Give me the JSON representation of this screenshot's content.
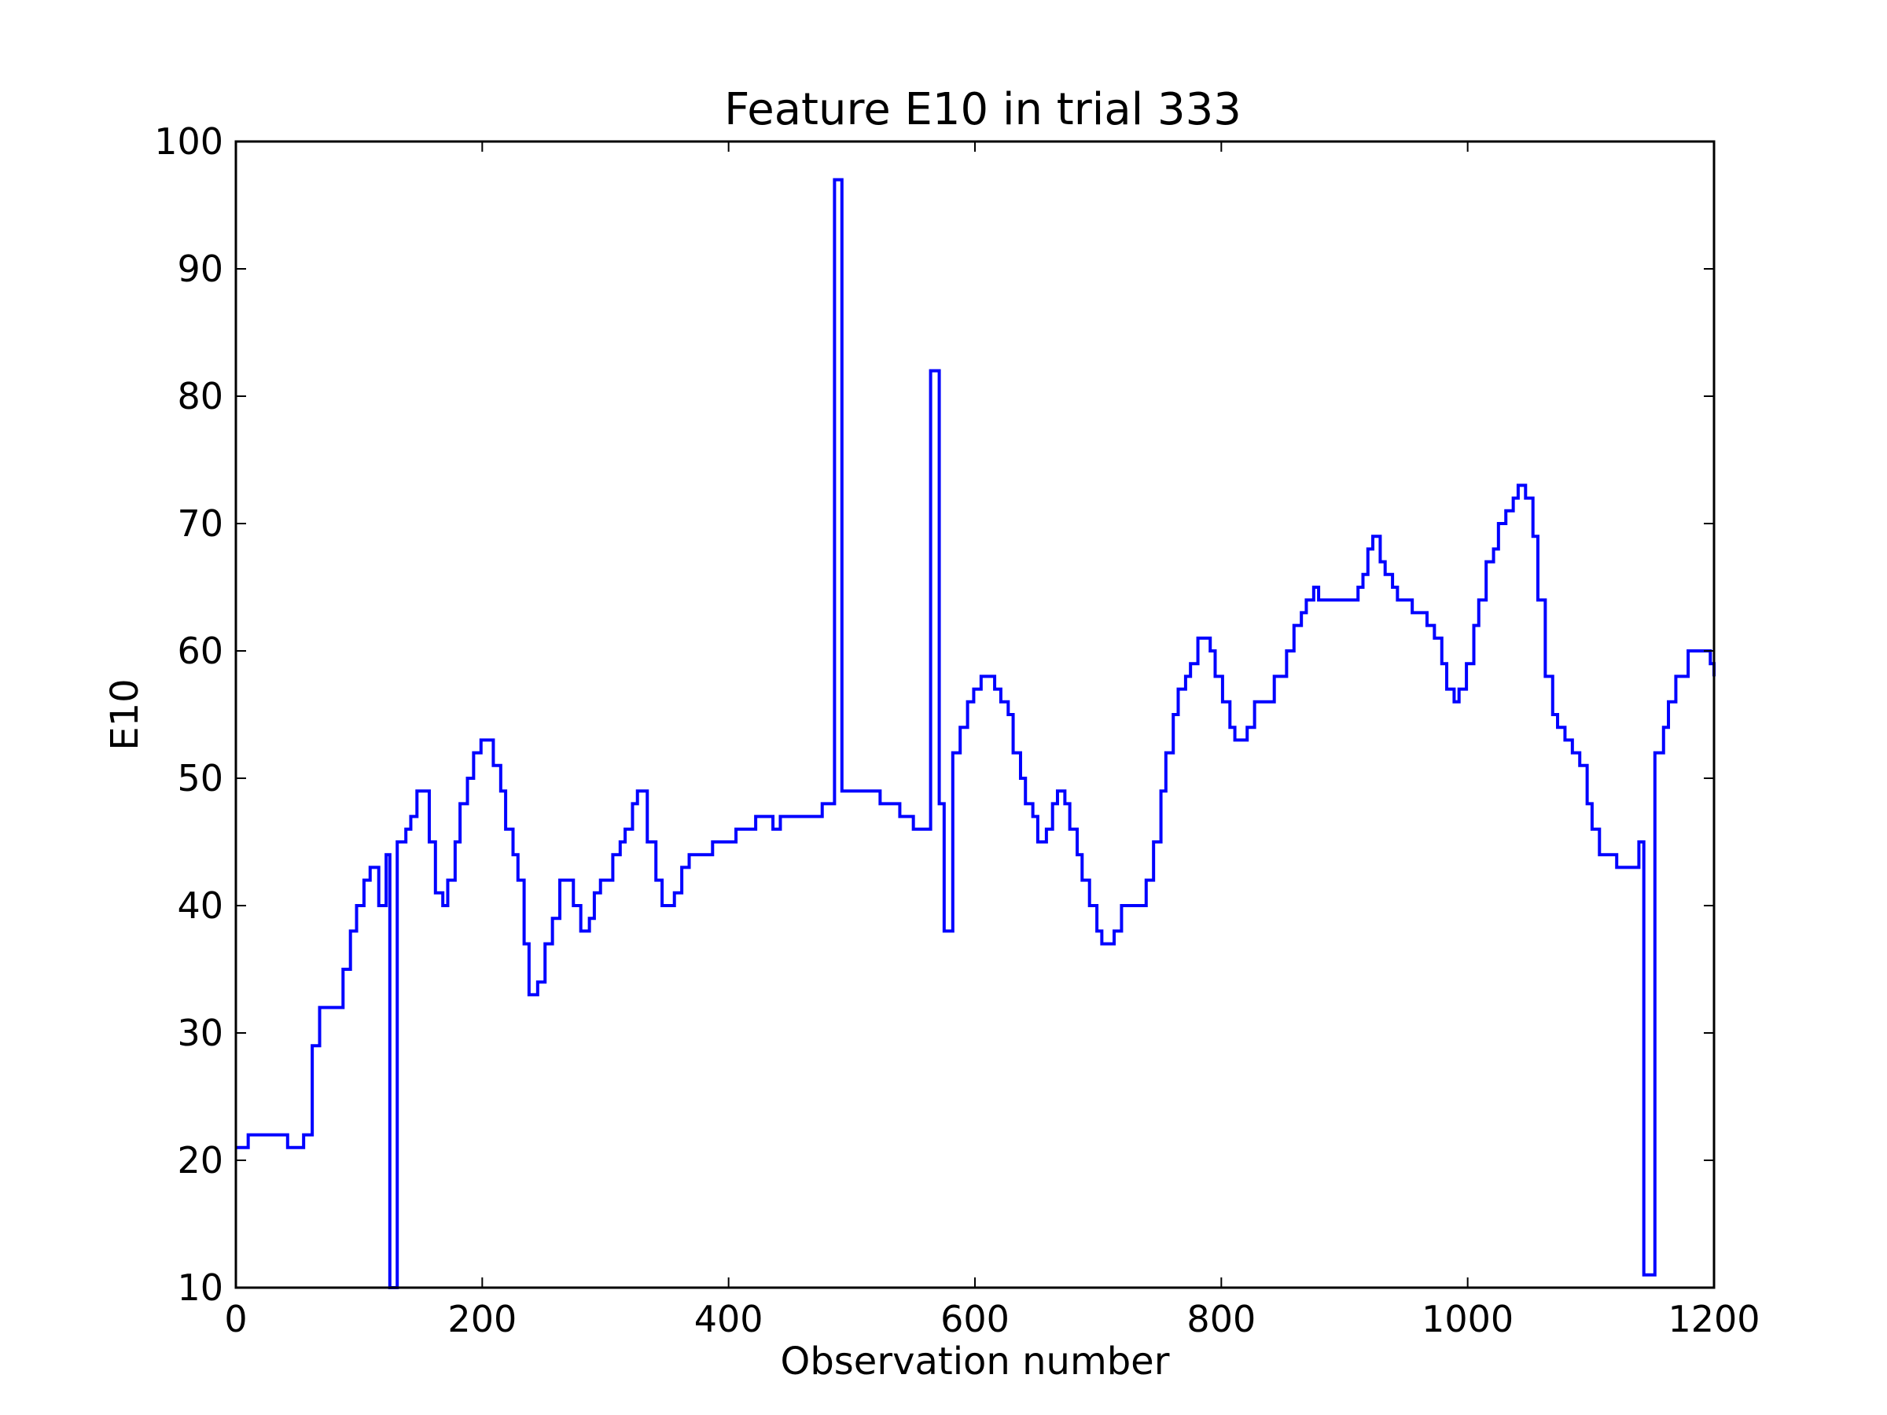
{
  "chart_data": {
    "type": "line",
    "title": "Feature E10 in trial 333",
    "xlabel": "Observation number",
    "ylabel": "E10",
    "xlim": [
      0,
      1200
    ],
    "ylim": [
      10,
      100
    ],
    "grid": false,
    "x_ticks": [
      "0",
      "200",
      "400",
      "600",
      "800",
      "1000",
      "1200"
    ],
    "y_ticks": [
      "10",
      "20",
      "30",
      "40",
      "50",
      "60",
      "70",
      "80",
      "90",
      "100"
    ],
    "series": [
      {
        "color": "#0000ff",
        "step": true,
        "points": [
          [
            0,
            21
          ],
          [
            10,
            22
          ],
          [
            40,
            22
          ],
          [
            42,
            21
          ],
          [
            52,
            21
          ],
          [
            55,
            22
          ],
          [
            60,
            22
          ],
          [
            62,
            29
          ],
          [
            66,
            29
          ],
          [
            68,
            32
          ],
          [
            85,
            32
          ],
          [
            87,
            35
          ],
          [
            91,
            35
          ],
          [
            93,
            38
          ],
          [
            96,
            38
          ],
          [
            98,
            40
          ],
          [
            102,
            40
          ],
          [
            104,
            42
          ],
          [
            107,
            42
          ],
          [
            109,
            43
          ],
          [
            114,
            43
          ],
          [
            116,
            40
          ],
          [
            120,
            40
          ],
          [
            122,
            44
          ],
          [
            124,
            44
          ],
          [
            125,
            10
          ],
          [
            129,
            10
          ],
          [
            131,
            45
          ],
          [
            136,
            45
          ],
          [
            138,
            46
          ],
          [
            140,
            46
          ],
          [
            142,
            47
          ],
          [
            145,
            47
          ],
          [
            147,
            49
          ],
          [
            155,
            49
          ],
          [
            157,
            45
          ],
          [
            160,
            45
          ],
          [
            162,
            41
          ],
          [
            166,
            41
          ],
          [
            168,
            40
          ],
          [
            170,
            40
          ],
          [
            172,
            42
          ],
          [
            176,
            42
          ],
          [
            178,
            45
          ],
          [
            180,
            45
          ],
          [
            182,
            48
          ],
          [
            186,
            48
          ],
          [
            188,
            50
          ],
          [
            191,
            50
          ],
          [
            193,
            52
          ],
          [
            197,
            52
          ],
          [
            199,
            53
          ],
          [
            207,
            53
          ],
          [
            209,
            51
          ],
          [
            213,
            51
          ],
          [
            215,
            49
          ],
          [
            217,
            49
          ],
          [
            219,
            46
          ],
          [
            223,
            46
          ],
          [
            225,
            44
          ],
          [
            227,
            44
          ],
          [
            229,
            42
          ],
          [
            232,
            42
          ],
          [
            234,
            37
          ],
          [
            236,
            37
          ],
          [
            238,
            33
          ],
          [
            243,
            33
          ],
          [
            245,
            34
          ],
          [
            249,
            34
          ],
          [
            251,
            37
          ],
          [
            255,
            37
          ],
          [
            257,
            39
          ],
          [
            261,
            39
          ],
          [
            263,
            42
          ],
          [
            272,
            42
          ],
          [
            274,
            40
          ],
          [
            278,
            40
          ],
          [
            280,
            38
          ],
          [
            285,
            38
          ],
          [
            287,
            39
          ],
          [
            289,
            39
          ],
          [
            291,
            41
          ],
          [
            294,
            41
          ],
          [
            296,
            42
          ],
          [
            304,
            42
          ],
          [
            306,
            44
          ],
          [
            310,
            44
          ],
          [
            312,
            45
          ],
          [
            314,
            45
          ],
          [
            316,
            46
          ],
          [
            320,
            46
          ],
          [
            322,
            48
          ],
          [
            324,
            48
          ],
          [
            326,
            49
          ],
          [
            332,
            49
          ],
          [
            334,
            45
          ],
          [
            339,
            45
          ],
          [
            341,
            42
          ],
          [
            344,
            42
          ],
          [
            346,
            40
          ],
          [
            354,
            40
          ],
          [
            356,
            41
          ],
          [
            360,
            41
          ],
          [
            362,
            43
          ],
          [
            366,
            43
          ],
          [
            368,
            44
          ],
          [
            385,
            44
          ],
          [
            387,
            45
          ],
          [
            404,
            45
          ],
          [
            406,
            46
          ],
          [
            420,
            46
          ],
          [
            422,
            47
          ],
          [
            434,
            47
          ],
          [
            436,
            46
          ],
          [
            440,
            46
          ],
          [
            442,
            47
          ],
          [
            474,
            47
          ],
          [
            476,
            48
          ],
          [
            484,
            48
          ],
          [
            486,
            97
          ],
          [
            490,
            97
          ],
          [
            492,
            49
          ],
          [
            521,
            49
          ],
          [
            523,
            48
          ],
          [
            537,
            48
          ],
          [
            539,
            47
          ],
          [
            548,
            47
          ],
          [
            550,
            46
          ],
          [
            562,
            46
          ],
          [
            564,
            82
          ],
          [
            569,
            82
          ],
          [
            571,
            48
          ],
          [
            573,
            48
          ],
          [
            575,
            38
          ],
          [
            580,
            38
          ],
          [
            582,
            52
          ],
          [
            586,
            52
          ],
          [
            588,
            54
          ],
          [
            592,
            54
          ],
          [
            594,
            56
          ],
          [
            597,
            56
          ],
          [
            599,
            57
          ],
          [
            603,
            57
          ],
          [
            605,
            58
          ],
          [
            614,
            58
          ],
          [
            616,
            57
          ],
          [
            619,
            57
          ],
          [
            621,
            56
          ],
          [
            625,
            56
          ],
          [
            627,
            55
          ],
          [
            629,
            55
          ],
          [
            631,
            52
          ],
          [
            635,
            52
          ],
          [
            637,
            50
          ],
          [
            639,
            50
          ],
          [
            641,
            48
          ],
          [
            645,
            48
          ],
          [
            647,
            47
          ],
          [
            649,
            47
          ],
          [
            651,
            45
          ],
          [
            656,
            45
          ],
          [
            658,
            46
          ],
          [
            661,
            46
          ],
          [
            663,
            48
          ],
          [
            665,
            48
          ],
          [
            667,
            49
          ],
          [
            671,
            49
          ],
          [
            673,
            48
          ],
          [
            675,
            48
          ],
          [
            677,
            46
          ],
          [
            681,
            46
          ],
          [
            683,
            44
          ],
          [
            685,
            44
          ],
          [
            687,
            42
          ],
          [
            691,
            42
          ],
          [
            693,
            40
          ],
          [
            697,
            40
          ],
          [
            699,
            38
          ],
          [
            701,
            38
          ],
          [
            703,
            37
          ],
          [
            711,
            37
          ],
          [
            713,
            38
          ],
          [
            717,
            38
          ],
          [
            719,
            40
          ],
          [
            737,
            40
          ],
          [
            739,
            42
          ],
          [
            743,
            42
          ],
          [
            745,
            45
          ],
          [
            749,
            45
          ],
          [
            751,
            49
          ],
          [
            753,
            49
          ],
          [
            755,
            52
          ],
          [
            759,
            52
          ],
          [
            761,
            55
          ],
          [
            763,
            55
          ],
          [
            765,
            57
          ],
          [
            769,
            57
          ],
          [
            771,
            58
          ],
          [
            773,
            58
          ],
          [
            775,
            59
          ],
          [
            779,
            59
          ],
          [
            781,
            61
          ],
          [
            789,
            61
          ],
          [
            791,
            60
          ],
          [
            793,
            60
          ],
          [
            795,
            58
          ],
          [
            799,
            58
          ],
          [
            801,
            56
          ],
          [
            805,
            56
          ],
          [
            807,
            54
          ],
          [
            809,
            54
          ],
          [
            811,
            53
          ],
          [
            819,
            53
          ],
          [
            821,
            54
          ],
          [
            825,
            54
          ],
          [
            827,
            56
          ],
          [
            841,
            56
          ],
          [
            843,
            58
          ],
          [
            851,
            58
          ],
          [
            853,
            60
          ],
          [
            857,
            60
          ],
          [
            859,
            62
          ],
          [
            863,
            62
          ],
          [
            865,
            63
          ],
          [
            867,
            63
          ],
          [
            869,
            64
          ],
          [
            873,
            64
          ],
          [
            875,
            65
          ],
          [
            877,
            65
          ],
          [
            879,
            64
          ],
          [
            909,
            64
          ],
          [
            911,
            65
          ],
          [
            913,
            65
          ],
          [
            915,
            66
          ],
          [
            917,
            66
          ],
          [
            919,
            68
          ],
          [
            921,
            68
          ],
          [
            923,
            69
          ],
          [
            927,
            69
          ],
          [
            929,
            67
          ],
          [
            931,
            67
          ],
          [
            933,
            66
          ],
          [
            937,
            66
          ],
          [
            939,
            65
          ],
          [
            941,
            65
          ],
          [
            943,
            64
          ],
          [
            953,
            64
          ],
          [
            955,
            63
          ],
          [
            965,
            63
          ],
          [
            967,
            62
          ],
          [
            971,
            62
          ],
          [
            973,
            61
          ],
          [
            977,
            61
          ],
          [
            979,
            59
          ],
          [
            981,
            59
          ],
          [
            983,
            57
          ],
          [
            987,
            57
          ],
          [
            989,
            56
          ],
          [
            991,
            56
          ],
          [
            993,
            57
          ],
          [
            997,
            57
          ],
          [
            999,
            59
          ],
          [
            1003,
            59
          ],
          [
            1005,
            62
          ],
          [
            1007,
            62
          ],
          [
            1009,
            64
          ],
          [
            1013,
            64
          ],
          [
            1015,
            67
          ],
          [
            1019,
            67
          ],
          [
            1021,
            68
          ],
          [
            1023,
            68
          ],
          [
            1025,
            70
          ],
          [
            1029,
            70
          ],
          [
            1031,
            71
          ],
          [
            1035,
            71
          ],
          [
            1037,
            72
          ],
          [
            1039,
            72
          ],
          [
            1041,
            73
          ],
          [
            1045,
            73
          ],
          [
            1047,
            72
          ],
          [
            1051,
            72
          ],
          [
            1053,
            69
          ],
          [
            1055,
            69
          ],
          [
            1057,
            64
          ],
          [
            1061,
            64
          ],
          [
            1063,
            58
          ],
          [
            1067,
            58
          ],
          [
            1069,
            55
          ],
          [
            1071,
            55
          ],
          [
            1073,
            54
          ],
          [
            1077,
            54
          ],
          [
            1079,
            53
          ],
          [
            1083,
            53
          ],
          [
            1085,
            52
          ],
          [
            1089,
            52
          ],
          [
            1091,
            51
          ],
          [
            1095,
            51
          ],
          [
            1097,
            48
          ],
          [
            1099,
            48
          ],
          [
            1101,
            46
          ],
          [
            1105,
            46
          ],
          [
            1107,
            44
          ],
          [
            1119,
            44
          ],
          [
            1121,
            43
          ],
          [
            1137,
            43
          ],
          [
            1139,
            45
          ],
          [
            1141,
            45
          ],
          [
            1143,
            11
          ],
          [
            1150,
            11
          ],
          [
            1152,
            52
          ],
          [
            1157,
            52
          ],
          [
            1159,
            54
          ],
          [
            1161,
            54
          ],
          [
            1163,
            56
          ],
          [
            1167,
            56
          ],
          [
            1169,
            58
          ],
          [
            1177,
            58
          ],
          [
            1179,
            60
          ],
          [
            1195,
            60
          ],
          [
            1197,
            59
          ],
          [
            1199,
            59
          ],
          [
            1200,
            58
          ]
        ]
      }
    ]
  }
}
